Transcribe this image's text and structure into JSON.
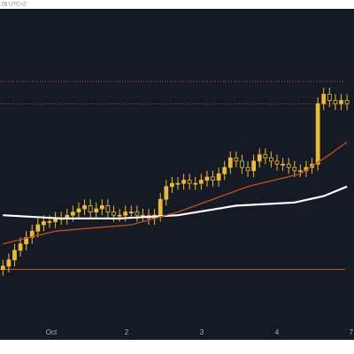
{
  "chart_data": {
    "type": "candlestick",
    "subtitle": ":26 UTC+2",
    "color": "#e8b93a",
    "open": [
      21,
      22,
      24,
      27,
      29,
      31,
      33,
      35,
      36,
      36,
      37,
      37,
      38,
      39,
      40,
      41,
      39,
      40,
      41,
      39,
      38,
      38,
      39,
      39,
      38,
      38,
      37,
      38,
      43,
      47,
      48,
      48,
      49,
      48,
      48,
      49,
      50,
      49,
      51,
      53,
      56,
      55,
      53,
      52,
      55,
      57,
      56,
      55,
      54,
      54,
      53,
      52,
      52,
      53,
      54,
      73,
      76,
      74,
      73,
      74
    ],
    "high": [
      24,
      26,
      29,
      31,
      33,
      35,
      37,
      38,
      38,
      39,
      39,
      40,
      41,
      42,
      43,
      43,
      42,
      43,
      43,
      41,
      40,
      41,
      41,
      41,
      40,
      40,
      40,
      45,
      49,
      50,
      50,
      51,
      51,
      50,
      51,
      52,
      52,
      53,
      55,
      58,
      58,
      57,
      55,
      57,
      59,
      59,
      58,
      57,
      56,
      56,
      55,
      54,
      55,
      56,
      75,
      78,
      78,
      76,
      76,
      76
    ],
    "low": [
      19,
      20,
      22,
      25,
      27,
      29,
      31,
      33,
      34,
      34,
      35,
      35,
      36,
      37,
      38,
      37,
      37,
      38,
      37,
      36,
      36,
      36,
      37,
      36,
      36,
      35,
      35,
      36,
      41,
      45,
      46,
      46,
      46,
      46,
      46,
      47,
      47,
      47,
      49,
      51,
      53,
      51,
      50,
      50,
      53,
      54,
      53,
      52,
      52,
      51,
      50,
      50,
      50,
      51,
      52,
      71,
      72,
      71,
      71,
      71
    ],
    "close": [
      22,
      24,
      27,
      29,
      31,
      33,
      35,
      36,
      36,
      37,
      37,
      38,
      39,
      40,
      41,
      39,
      40,
      41,
      39,
      38,
      38,
      39,
      39,
      38,
      38,
      37,
      38,
      43,
      47,
      48,
      48,
      49,
      48,
      48,
      49,
      50,
      49,
      51,
      53,
      56,
      55,
      53,
      52,
      55,
      57,
      56,
      55,
      54,
      54,
      53,
      52,
      52,
      53,
      54,
      73,
      76,
      74,
      73,
      74,
      73
    ],
    "lines": [
      {
        "color": "#ffffff",
        "width": 2.2,
        "x": [
          0,
          10,
          20,
          30,
          40,
          50,
          55,
          59
        ],
        "values": [
          38,
          37,
          37,
          38,
          41,
          42,
          44,
          47
        ]
      },
      {
        "color": "#c0501e",
        "width": 1.3,
        "x": [
          0,
          9,
          22,
          30,
          42,
          51,
          56,
          59
        ],
        "values": [
          29,
          33,
          35,
          39,
          47,
          51,
          57,
          61
        ]
      }
    ],
    "levels": [
      {
        "value": 80,
        "color": "#a0522d",
        "dash": "1 2"
      },
      {
        "value": 73,
        "color": "#a0522d",
        "dash": "1 2"
      },
      {
        "value": 21,
        "color": "#c0602a",
        "dash": "none"
      }
    ],
    "xlim": [
      -0.5,
      60.2
    ],
    "ylim": [
      0,
      100
    ],
    "xticks": [
      {
        "value": 8.3,
        "label": "Oct"
      },
      {
        "value": 21.2,
        "label": "2"
      },
      {
        "value": 34.1,
        "label": "3"
      },
      {
        "value": 47,
        "label": "4"
      },
      {
        "value": 59.7,
        "label": "7"
      }
    ]
  }
}
